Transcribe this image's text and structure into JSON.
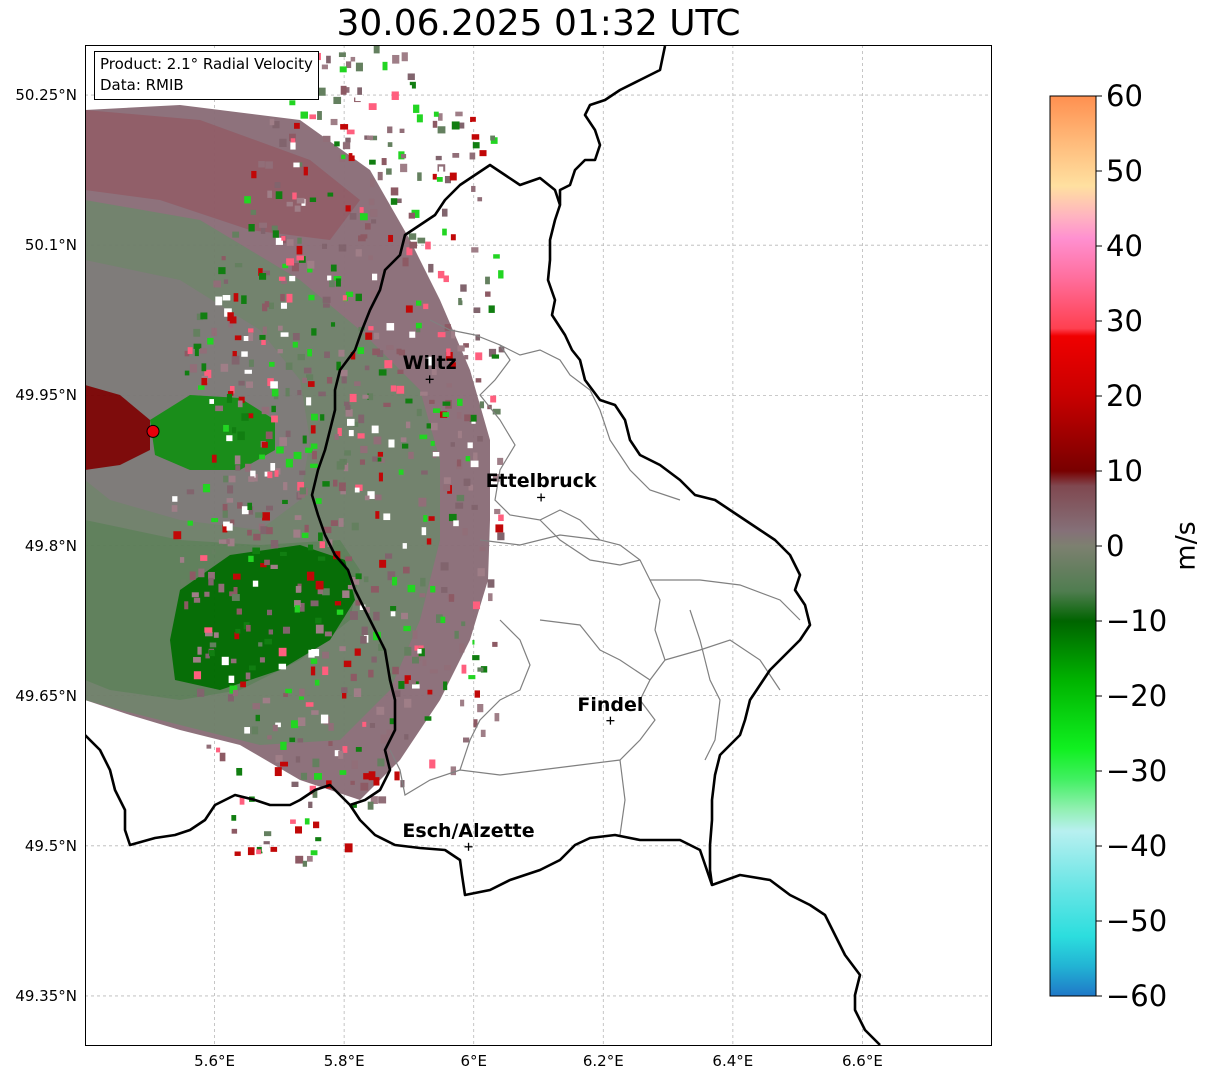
{
  "title": "30.06.2025 01:32 UTC",
  "info_box": {
    "product": "Product: 2.1° Radial Velocity",
    "data_source": "Data: RMIB"
  },
  "map": {
    "lon_range": [
      5.4,
      6.8
    ],
    "lat_range": [
      49.3,
      50.3
    ],
    "grid": "dashed",
    "lat_ticks": [
      {
        "value": 50.25,
        "label": "50.25°N"
      },
      {
        "value": 50.1,
        "label": "50.1°N"
      },
      {
        "value": 49.95,
        "label": "49.95°N"
      },
      {
        "value": 49.8,
        "label": "49.8°N"
      },
      {
        "value": 49.65,
        "label": "49.65°N"
      },
      {
        "value": 49.5,
        "label": "49.5°N"
      },
      {
        "value": 49.35,
        "label": "49.35°N"
      }
    ],
    "lon_ticks": [
      {
        "value": 5.6,
        "label": "5.6°E"
      },
      {
        "value": 5.8,
        "label": "5.8°E"
      },
      {
        "value": 6.0,
        "label": "6°E"
      },
      {
        "value": 6.2,
        "label": "6.2°E"
      },
      {
        "value": 6.4,
        "label": "6.4°E"
      },
      {
        "value": 6.6,
        "label": "6.6°E"
      }
    ],
    "radar_site": {
      "lon": 5.505,
      "lat": 49.914,
      "marker_color": "#e8000b"
    },
    "cities": [
      {
        "name": "Wiltz",
        "lon": 5.932,
        "lat": 49.966
      },
      {
        "name": "Ettelbruck",
        "lon": 6.104,
        "lat": 49.848
      },
      {
        "name": "Findel",
        "lon": 6.211,
        "lat": 49.625
      },
      {
        "name": "Esch/Alzette",
        "lon": 5.992,
        "lat": 49.499
      }
    ],
    "border_color": "#000000",
    "canton_color": "#808080"
  },
  "colorbar": {
    "unit": "m/s",
    "range": [
      -60,
      60
    ],
    "ticks": [
      {
        "value": 60,
        "label": "60"
      },
      {
        "value": 50,
        "label": "50"
      },
      {
        "value": 40,
        "label": "40"
      },
      {
        "value": 30,
        "label": "30"
      },
      {
        "value": 20,
        "label": "20"
      },
      {
        "value": 10,
        "label": "10"
      },
      {
        "value": 0,
        "label": "0"
      },
      {
        "value": -10,
        "label": "−10"
      },
      {
        "value": -20,
        "label": "−20"
      },
      {
        "value": -30,
        "label": "−30"
      },
      {
        "value": -40,
        "label": "−40"
      },
      {
        "value": -50,
        "label": "−50"
      },
      {
        "value": -60,
        "label": "−60"
      }
    ],
    "color_stops": [
      {
        "value": -60,
        "color": "#1f78c8"
      },
      {
        "value": -56,
        "color": "#22b4d4"
      },
      {
        "value": -52,
        "color": "#2cdede"
      },
      {
        "value": -45,
        "color": "#6ee6e6"
      },
      {
        "value": -38,
        "color": "#b8f0f0"
      },
      {
        "value": -35,
        "color": "#90f0b0"
      },
      {
        "value": -31,
        "color": "#40f060"
      },
      {
        "value": -27,
        "color": "#10f020"
      },
      {
        "value": -18,
        "color": "#00b400"
      },
      {
        "value": -10,
        "color": "#006400"
      },
      {
        "value": -6,
        "color": "#507d50"
      },
      {
        "value": 0,
        "color": "#7d8070"
      },
      {
        "value": 2,
        "color": "#857078"
      },
      {
        "value": 8,
        "color": "#804850"
      },
      {
        "value": 10,
        "color": "#780000"
      },
      {
        "value": 20,
        "color": "#c80000"
      },
      {
        "value": 28,
        "color": "#f00000"
      },
      {
        "value": 29,
        "color": "#ff4050"
      },
      {
        "value": 36,
        "color": "#ff70a0"
      },
      {
        "value": 41,
        "color": "#ff90d0"
      },
      {
        "value": 44,
        "color": "#ffb4c0"
      },
      {
        "value": 48,
        "color": "#ffe0a0"
      },
      {
        "value": 53,
        "color": "#ffc080"
      },
      {
        "value": 60,
        "color": "#ff9050"
      }
    ]
  }
}
